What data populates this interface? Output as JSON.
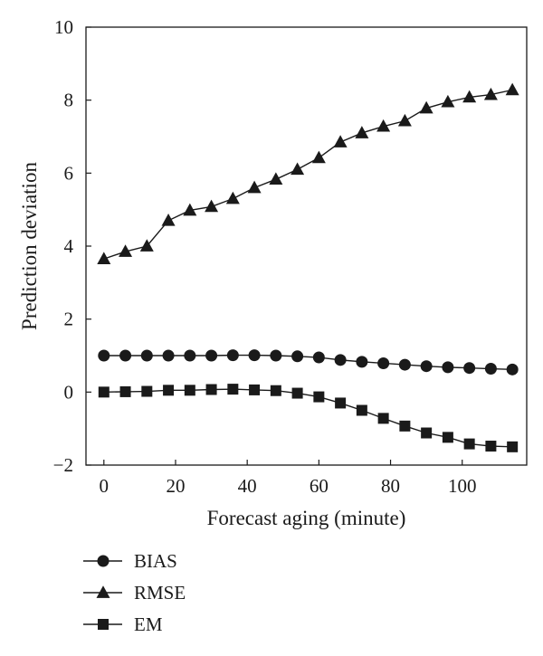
{
  "chart_data": {
    "type": "line",
    "title": "",
    "xlabel": "Forecast aging (minute)",
    "ylabel": "Prediction deviation",
    "xlim": [
      -5,
      118
    ],
    "ylim": [
      -2,
      10
    ],
    "xticks": [
      0,
      20,
      40,
      60,
      80,
      100
    ],
    "yticks": [
      -2,
      0,
      2,
      4,
      6,
      8,
      10
    ],
    "xtick_labels": [
      "0",
      "20",
      "40",
      "60",
      "80",
      "100"
    ],
    "ytick_labels": [
      "−2",
      "0",
      "2",
      "4",
      "6",
      "8",
      "10"
    ],
    "grid": false,
    "legend_position": "bottom-left",
    "x": [
      0,
      6,
      12,
      18,
      24,
      30,
      36,
      42,
      48,
      54,
      60,
      66,
      72,
      78,
      84,
      90,
      96,
      102,
      108,
      114
    ],
    "series": [
      {
        "name": "BIAS",
        "marker": "circle",
        "values": [
          1.0,
          1.0,
          1.0,
          1.0,
          1.0,
          1.0,
          1.01,
          1.01,
          1.0,
          0.98,
          0.95,
          0.88,
          0.83,
          0.79,
          0.75,
          0.71,
          0.68,
          0.66,
          0.64,
          0.62
        ]
      },
      {
        "name": "RMSE",
        "marker": "triangle",
        "values": [
          3.65,
          3.85,
          4.0,
          4.7,
          4.98,
          5.08,
          5.3,
          5.6,
          5.83,
          6.1,
          6.42,
          6.85,
          7.1,
          7.28,
          7.43,
          7.78,
          7.95,
          8.08,
          8.15,
          8.28
        ]
      },
      {
        "name": "EM",
        "marker": "square",
        "values": [
          0.0,
          0.01,
          0.02,
          0.05,
          0.05,
          0.07,
          0.08,
          0.06,
          0.04,
          -0.03,
          -0.13,
          -0.3,
          -0.5,
          -0.72,
          -0.93,
          -1.12,
          -1.24,
          -1.42,
          -1.48,
          -1.5
        ]
      }
    ],
    "color": "#1a1a1a"
  }
}
